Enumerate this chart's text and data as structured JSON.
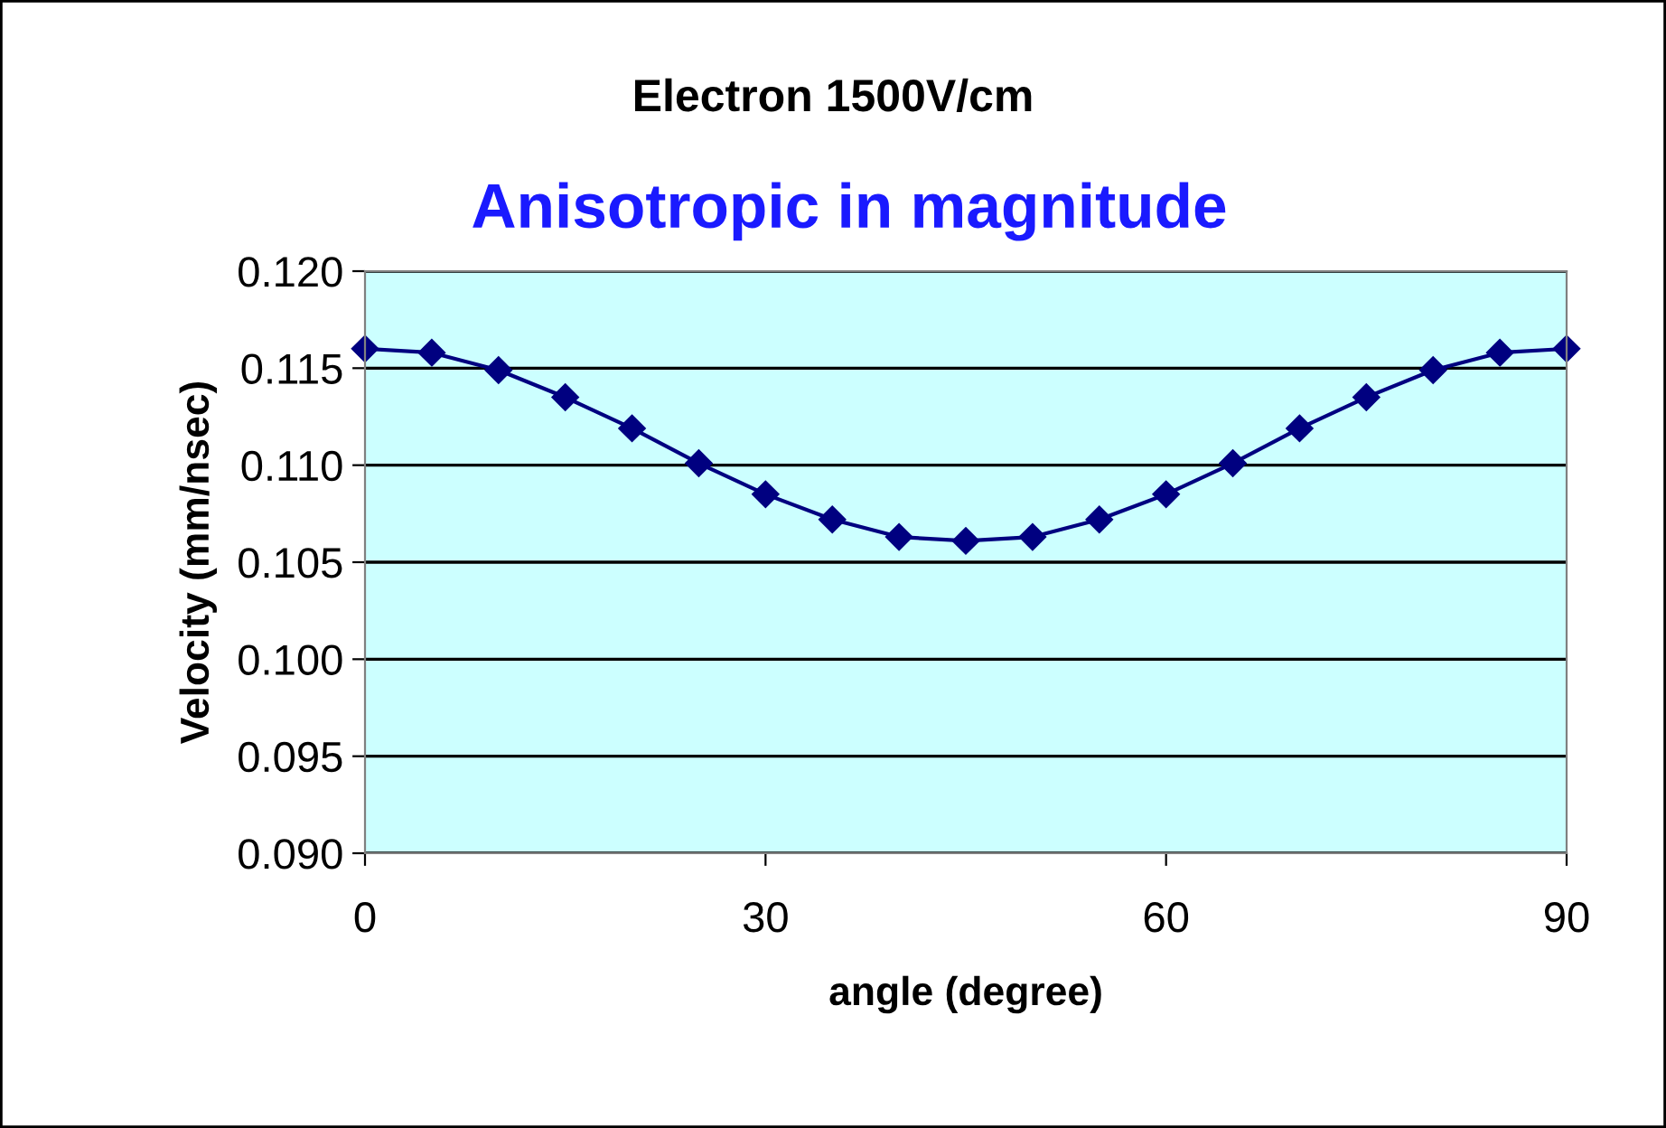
{
  "chart_data": {
    "type": "line",
    "title": "Electron 1500V/cm",
    "subtitle": "Anisotropic in magnitude",
    "xlabel": "angle (degree)",
    "ylabel": "Velocity (mm/nsec)",
    "x": [
      0,
      5,
      10,
      15,
      20,
      25,
      30,
      35,
      40,
      45,
      50,
      55,
      60,
      65,
      70,
      75,
      80,
      85,
      90
    ],
    "series": [
      {
        "color": "#000080",
        "values": [
          0.116,
          0.1158,
          0.1149,
          0.1135,
          0.1119,
          0.1101,
          0.1085,
          0.1072,
          0.1063,
          0.1061,
          0.1063,
          0.1072,
          0.1085,
          0.1101,
          0.1119,
          0.1135,
          0.1149,
          0.1158,
          0.116
        ]
      }
    ],
    "xlim": [
      0,
      90
    ],
    "xticks": [
      0,
      30,
      60,
      90
    ],
    "ylim": [
      0.09,
      0.12
    ],
    "yticks": [
      {
        "value": 0.09,
        "label": "0.090"
      },
      {
        "value": 0.095,
        "label": "0.095"
      },
      {
        "value": 0.1,
        "label": "0.100"
      },
      {
        "value": 0.105,
        "label": "0.105"
      },
      {
        "value": 0.11,
        "label": "0.110"
      },
      {
        "value": 0.115,
        "label": "0.115"
      },
      {
        "value": 0.12,
        "label": "0.120"
      }
    ],
    "grid": "y",
    "marker": "diamond",
    "line_style": "solid",
    "legend": false
  }
}
